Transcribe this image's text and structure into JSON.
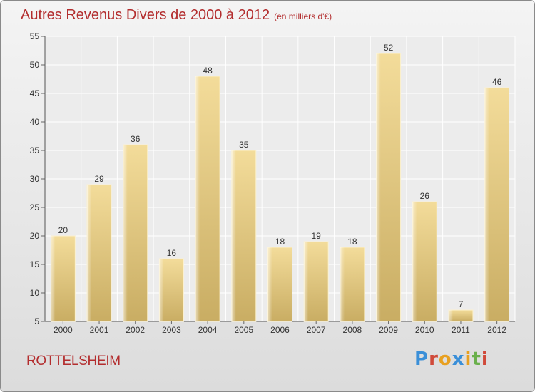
{
  "header": {
    "title": "Autres Revenus Divers de 2000 à 2012",
    "subtitle": "(en milliers d'€)"
  },
  "footer": {
    "commune": "ROTTELSHEIM",
    "logo_text": "Proxiti"
  },
  "colors": {
    "title": "#b32d2e",
    "bar_light": "#f3dc9a",
    "bar_dark": "#c9ad63",
    "logo_letters": [
      "#3a8fd8",
      "#d04a3a",
      "#e8a020",
      "#3a8fd8",
      "#e8a020",
      "#6ab04c",
      "#d04a3a"
    ]
  },
  "chart_data": {
    "type": "bar",
    "categories": [
      "2000",
      "2001",
      "2002",
      "2003",
      "2004",
      "2005",
      "2006",
      "2007",
      "2008",
      "2009",
      "2010",
      "2011",
      "2012"
    ],
    "values": [
      20,
      29,
      36,
      16,
      48,
      35,
      18,
      19,
      18,
      52,
      26,
      7,
      46
    ],
    "ylim": [
      5,
      55
    ],
    "yticks": [
      5,
      10,
      15,
      20,
      25,
      30,
      35,
      40,
      45,
      50,
      55
    ],
    "grid": true
  }
}
